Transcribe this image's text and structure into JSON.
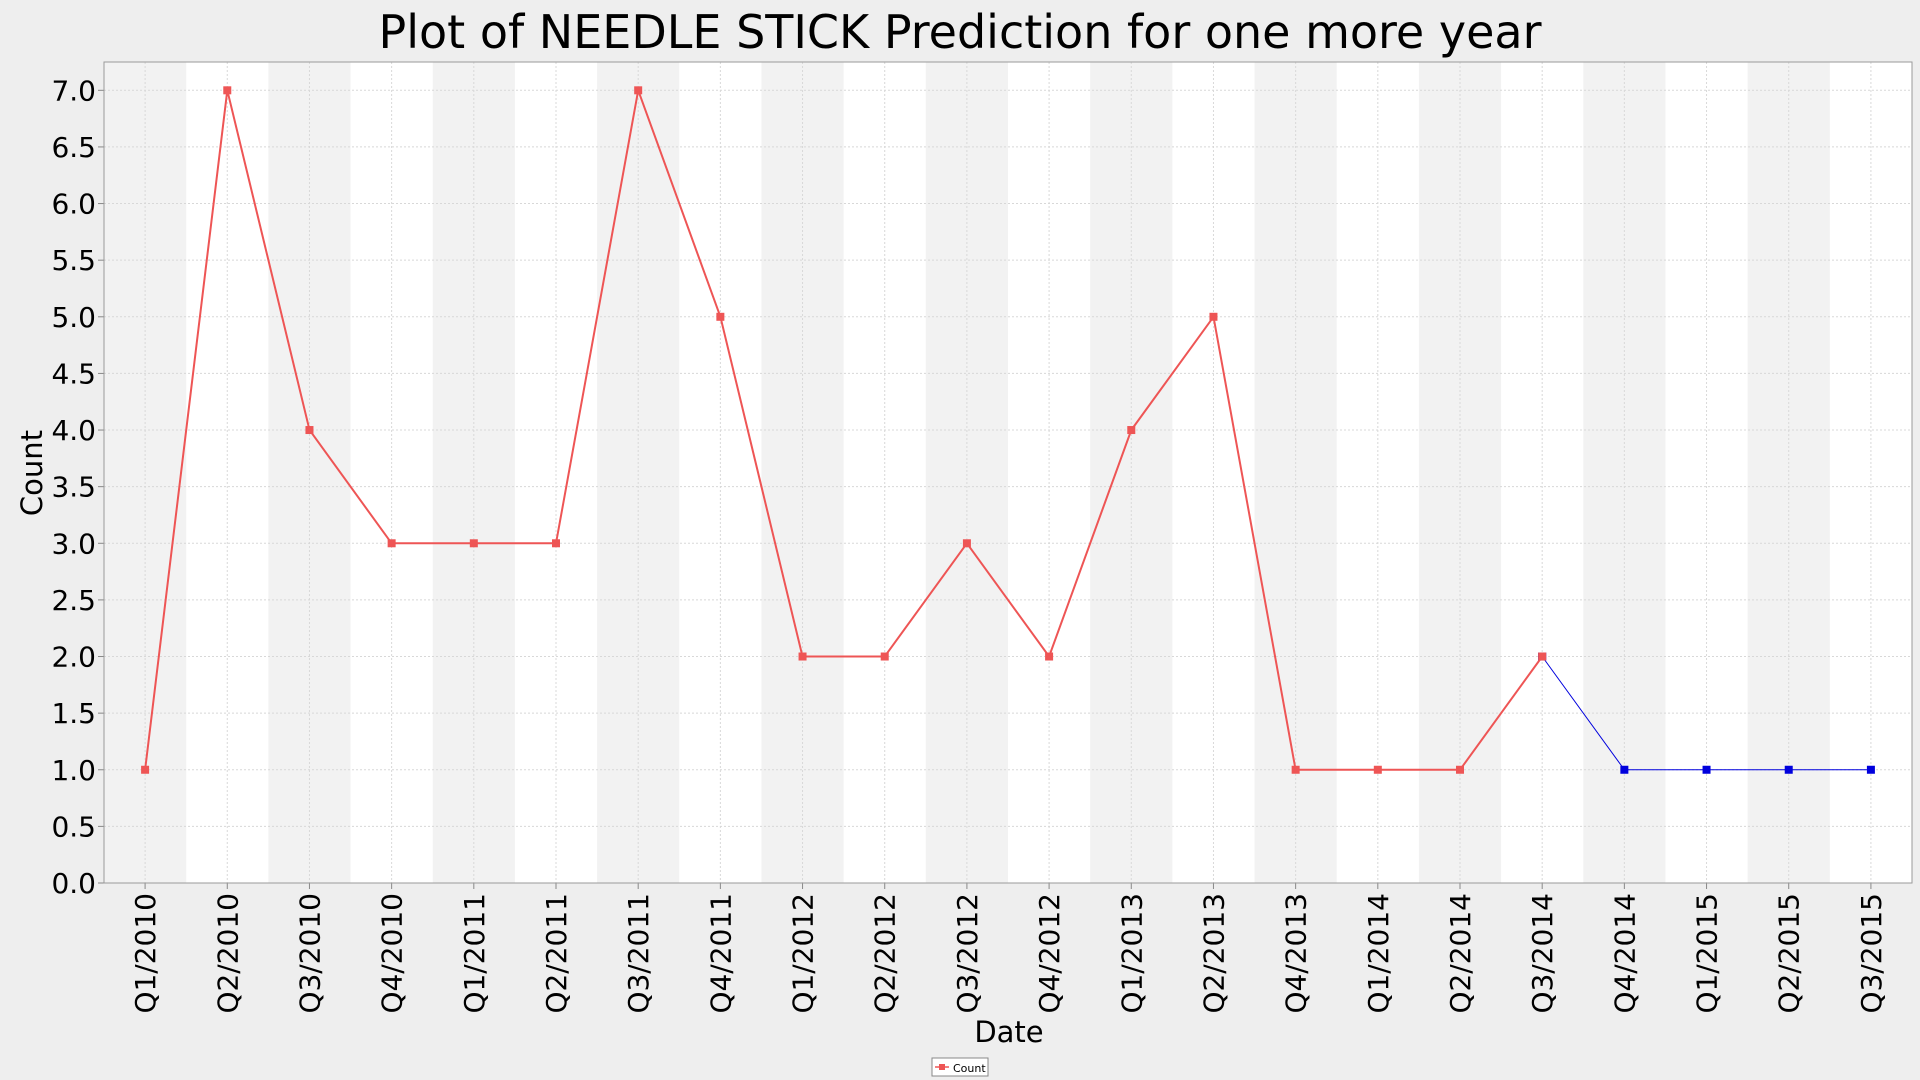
{
  "chart_data": {
    "type": "line",
    "title": "Plot of NEEDLE STICK Prediction for one more year",
    "xlabel": "Date",
    "ylabel": "Count",
    "ylim": [
      0,
      7.25
    ],
    "yticks": [
      "0.0",
      "0.5",
      "1.0",
      "1.5",
      "2.0",
      "2.5",
      "3.0",
      "3.5",
      "4.0",
      "4.5",
      "5.0",
      "5.5",
      "6.0",
      "6.5",
      "7.0"
    ],
    "categories": [
      "Q1/2010",
      "Q2/2010",
      "Q3/2010",
      "Q4/2010",
      "Q1/2011",
      "Q2/2011",
      "Q3/2011",
      "Q4/2011",
      "Q1/2012",
      "Q2/2012",
      "Q3/2012",
      "Q4/2012",
      "Q1/2013",
      "Q2/2013",
      "Q4/2013",
      "Q1/2014",
      "Q2/2014",
      "Q3/2014",
      "Q4/2014",
      "Q1/2015",
      "Q2/2015",
      "Q3/2015"
    ],
    "series": [
      {
        "name": "Count",
        "color": "#ee5555",
        "values": [
          1,
          7,
          4,
          3,
          3,
          3,
          7,
          5,
          2,
          2,
          3,
          2,
          4,
          5,
          1,
          1,
          1,
          2,
          null,
          null,
          null,
          null
        ]
      },
      {
        "name": "",
        "color": "#0000dd",
        "values": [
          null,
          null,
          null,
          null,
          null,
          null,
          null,
          null,
          null,
          null,
          null,
          null,
          null,
          null,
          null,
          null,
          null,
          2,
          1,
          1,
          1,
          1
        ]
      }
    ],
    "grid": true,
    "legend_position": "bottom-center",
    "colors": {
      "plot_background": "#ffffff",
      "band_alternate": "#f2f2f2",
      "gridline": "#d8d8d8",
      "page_background": "#eeeeee"
    }
  }
}
